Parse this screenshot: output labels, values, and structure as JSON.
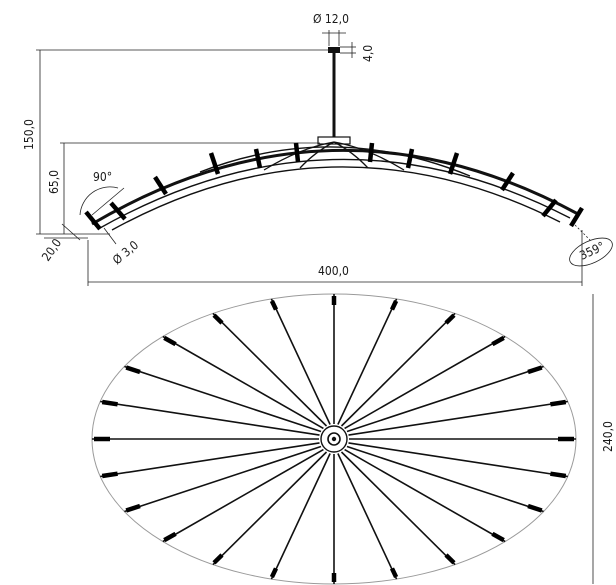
{
  "side_view": {
    "dim_stem_diameter": "Ø 12,0",
    "dim_cap_height": "4,0",
    "dim_total_height": "150,0",
    "dim_arc_height": "65,0",
    "dim_angle_90": "90°",
    "dim_tip_length": "20,0",
    "dim_rod_diameter": "Ø 3,0",
    "dim_width": "400,0",
    "dim_angle_359": "359°"
  },
  "top_view": {
    "dim_depth": "240,0",
    "spoke_count": 24
  }
}
